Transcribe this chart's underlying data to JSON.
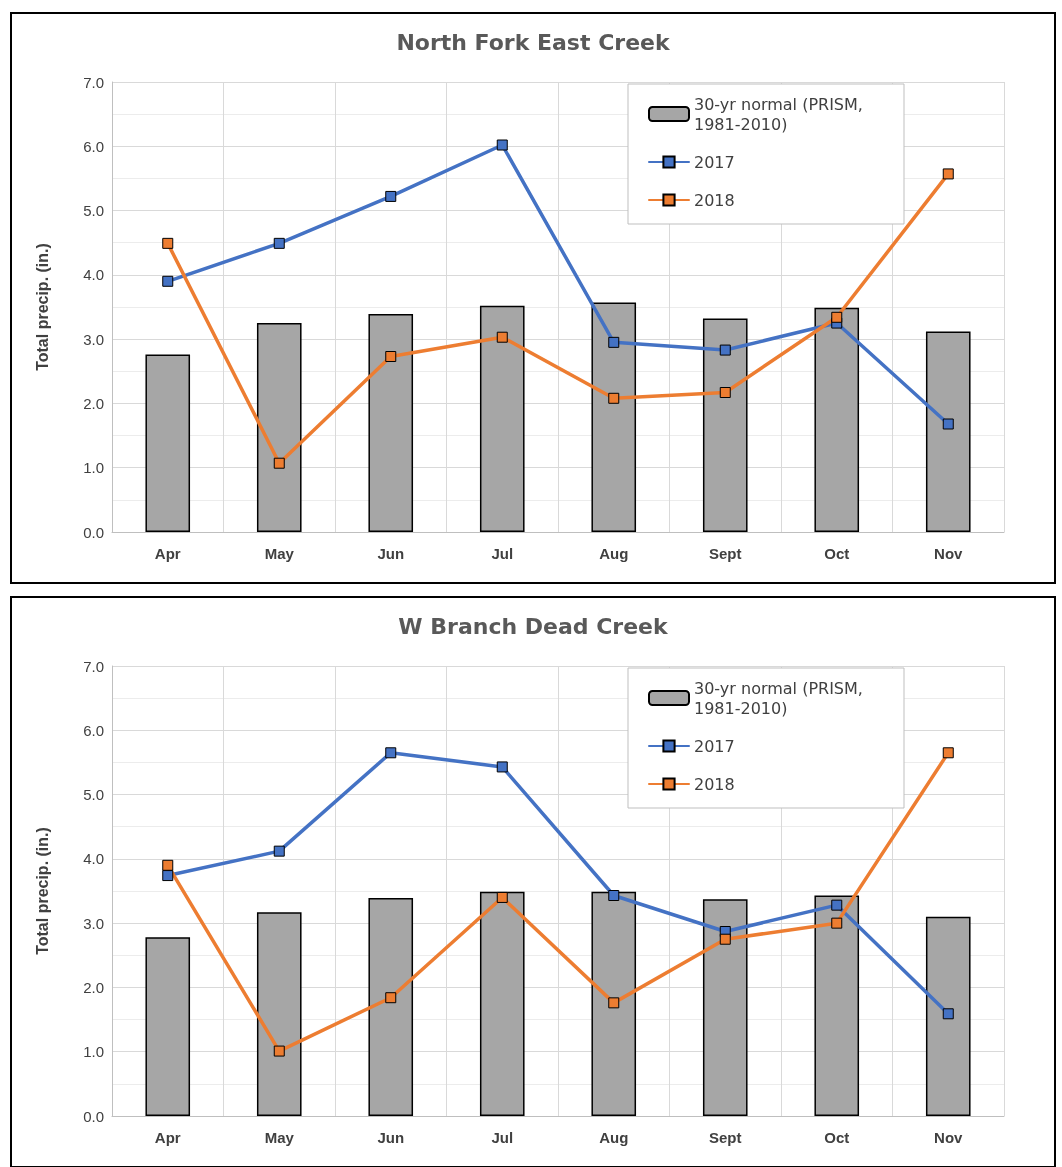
{
  "chart_data": [
    {
      "type": "bar",
      "title": "North Fork East Creek",
      "ylabel": "Total precip. (in.)",
      "categories": [
        "Apr",
        "May",
        "Jun",
        "Jul",
        "Aug",
        "Sept",
        "Oct",
        "Nov"
      ],
      "series": [
        {
          "name": "30-yr normal (PRISM, 1981-2010)",
          "color": "#a6a6a6",
          "values": [
            2.76,
            3.25,
            3.39,
            3.52,
            3.57,
            3.32,
            3.49,
            3.12
          ]
        },
        {
          "name": "2017",
          "type": "line",
          "color": "#4472c4",
          "values": [
            3.9,
            4.49,
            5.22,
            6.02,
            2.95,
            2.83,
            3.25,
            1.68
          ]
        },
        {
          "name": "2018",
          "type": "line",
          "color": "#ed7d31",
          "values": [
            4.49,
            1.07,
            2.73,
            3.03,
            2.08,
            2.17,
            3.34,
            5.57
          ]
        }
      ],
      "ylim": [
        0,
        7
      ],
      "yticks": [
        {
          "value": 0,
          "label": "0.0"
        },
        {
          "value": 1,
          "label": "1.0"
        },
        {
          "value": 2,
          "label": "2.0"
        },
        {
          "value": 3,
          "label": "3.0"
        },
        {
          "value": 4,
          "label": "4.0"
        },
        {
          "value": 5,
          "label": "5.0"
        },
        {
          "value": 6,
          "label": "6.0"
        },
        {
          "value": 7,
          "label": "7.0"
        }
      ],
      "grid": true,
      "legend": "top right",
      "marker": "square",
      "line_style": "solid"
    },
    {
      "type": "bar",
      "title": "W Branch Dead Creek",
      "ylabel": "Total precip. (in.)",
      "categories": [
        "Apr",
        "May",
        "Jun",
        "Jul",
        "Aug",
        "Sept",
        "Oct",
        "Nov"
      ],
      "series": [
        {
          "name": "30-yr normal (PRISM, 1981-2010)",
          "color": "#a6a6a6",
          "values": [
            2.78,
            3.17,
            3.39,
            3.49,
            3.49,
            3.37,
            3.43,
            3.1
          ]
        },
        {
          "name": "2017",
          "type": "line",
          "color": "#4472c4",
          "values": [
            3.74,
            4.12,
            5.65,
            5.43,
            3.43,
            2.87,
            3.28,
            1.59
          ]
        },
        {
          "name": "2018",
          "type": "line",
          "color": "#ed7d31",
          "values": [
            3.9,
            1.01,
            1.84,
            3.4,
            1.76,
            2.75,
            3.0,
            5.65
          ]
        }
      ],
      "ylim": [
        0,
        7
      ],
      "yticks": [
        {
          "value": 0,
          "label": "0.0"
        },
        {
          "value": 1,
          "label": "1.0"
        },
        {
          "value": 2,
          "label": "2.0"
        },
        {
          "value": 3,
          "label": "3.0"
        },
        {
          "value": 4,
          "label": "4.0"
        },
        {
          "value": 5,
          "label": "5.0"
        },
        {
          "value": 6,
          "label": "6.0"
        },
        {
          "value": 7,
          "label": "7.0"
        }
      ],
      "grid": true,
      "legend": "top right",
      "marker": "square",
      "line_style": "solid"
    }
  ]
}
